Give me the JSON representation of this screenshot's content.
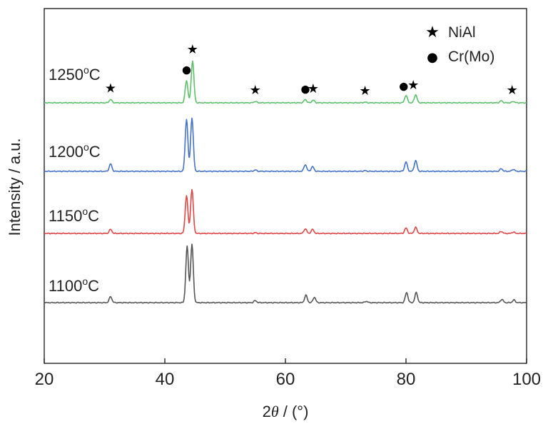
{
  "chart_data": {
    "type": "line",
    "title": "",
    "xlabel": {
      "prefix": "2",
      "var": "θ",
      "suffix": " / (°)"
    },
    "ylabel": "Intensity / a.u.",
    "xlim": [
      20,
      100
    ],
    "xticks": [
      20,
      40,
      60,
      80,
      100
    ],
    "grid": false,
    "legend": {
      "placement": "top-right",
      "entries": [
        {
          "symbol": "star",
          "label": "NiAl"
        },
        {
          "symbol": "circle",
          "label": "Cr(Mo)"
        }
      ]
    },
    "y_ticks_shown": false,
    "series": [
      {
        "temp": "1250",
        "unit": "oC",
        "color": "#5cbf6a",
        "baseline": 0.0,
        "peaks": [
          [
            31.0,
            0.05
          ],
          [
            43.6,
            0.33
          ],
          [
            44.6,
            0.62
          ],
          [
            55.0,
            0.02
          ],
          [
            63.3,
            0.05
          ],
          [
            64.6,
            0.04
          ],
          [
            73.2,
            0.01
          ],
          [
            80.0,
            0.11
          ],
          [
            81.6,
            0.12
          ],
          [
            95.8,
            0.03
          ],
          [
            97.8,
            0.02
          ]
        ]
      },
      {
        "temp": "1200",
        "unit": "oC",
        "color": "#4472c4",
        "baseline": 0.0,
        "peaks": [
          [
            31.0,
            0.11
          ],
          [
            43.6,
            0.77
          ],
          [
            44.5,
            0.79
          ],
          [
            55.0,
            0.02
          ],
          [
            63.3,
            0.1
          ],
          [
            64.5,
            0.07
          ],
          [
            73.2,
            0.01
          ],
          [
            80.0,
            0.14
          ],
          [
            81.6,
            0.16
          ],
          [
            95.8,
            0.04
          ],
          [
            97.8,
            0.03
          ]
        ]
      },
      {
        "temp": "1150",
        "unit": "oC",
        "color": "#e04545",
        "baseline": 0.0,
        "peaks": [
          [
            31.0,
            0.06
          ],
          [
            43.6,
            0.56
          ],
          [
            44.5,
            0.65
          ],
          [
            55.0,
            0.01
          ],
          [
            63.3,
            0.07
          ],
          [
            64.5,
            0.06
          ],
          [
            80.0,
            0.08
          ],
          [
            81.6,
            0.09
          ],
          [
            95.8,
            0.03
          ],
          [
            97.8,
            0.02
          ]
        ]
      },
      {
        "temp": "1100",
        "unit": "oC",
        "color": "#555555",
        "baseline": 0.0,
        "peaks": [
          [
            31.0,
            0.09
          ],
          [
            43.7,
            0.83
          ],
          [
            44.5,
            0.86
          ],
          [
            55.0,
            0.03
          ],
          [
            63.4,
            0.11
          ],
          [
            64.8,
            0.08
          ],
          [
            73.4,
            0.02
          ],
          [
            80.1,
            0.15
          ],
          [
            81.7,
            0.15
          ],
          [
            95.9,
            0.05
          ],
          [
            97.9,
            0.04
          ]
        ]
      }
    ],
    "annotations": [
      {
        "symbol": "star",
        "x": 31.0
      },
      {
        "symbol": "circle",
        "x": 43.6
      },
      {
        "symbol": "star",
        "x": 44.6
      },
      {
        "symbol": "star",
        "x": 55.0
      },
      {
        "symbol": "circle",
        "x": 63.3
      },
      {
        "symbol": "star",
        "x": 64.6
      },
      {
        "symbol": "star",
        "x": 73.2
      },
      {
        "symbol": "circle",
        "x": 79.6
      },
      {
        "symbol": "star",
        "x": 81.2
      },
      {
        "symbol": "star",
        "x": 97.6
      }
    ]
  },
  "symbols": {
    "star": "★",
    "circle": "●"
  }
}
